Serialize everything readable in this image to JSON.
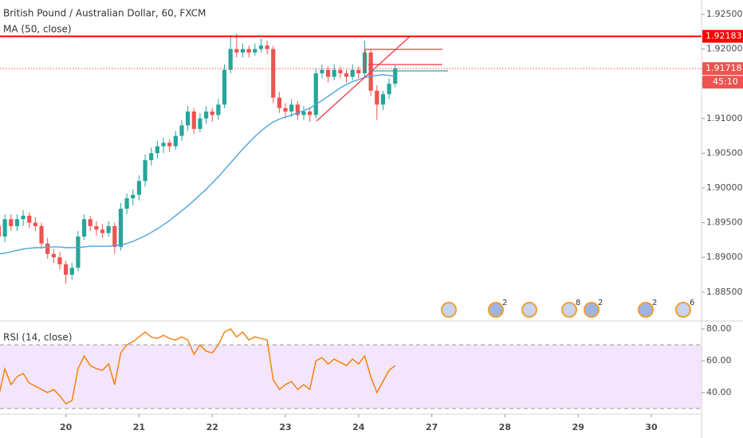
{
  "chart_data": [
    {
      "type": "candlestick",
      "title": "British Pound / Australian Dollar, 60, FXCM",
      "up_color": "#26a69a",
      "down_color": "#ef5350",
      "categories": [
        null,
        null,
        null,
        null,
        null,
        null,
        null,
        null,
        null,
        null,
        null,
        null,
        "20",
        null,
        null,
        null,
        null,
        null,
        null,
        null,
        null,
        null,
        null,
        null,
        "21",
        null,
        null,
        null,
        null,
        null,
        null,
        null,
        null,
        null,
        null,
        null,
        "22",
        null,
        null,
        null,
        null,
        null,
        null,
        null,
        null,
        null,
        null,
        null,
        "23",
        null,
        null,
        null,
        null,
        null,
        null,
        null,
        null,
        null,
        null,
        null,
        "24",
        null,
        null,
        null,
        null,
        null,
        null,
        null,
        null,
        null,
        null,
        null,
        "27",
        null,
        null,
        null,
        null,
        null,
        null,
        null,
        null,
        null,
        null,
        null,
        "28",
        null,
        null,
        null,
        null,
        null,
        null,
        null,
        null,
        null,
        null,
        null,
        "29",
        null,
        null,
        null,
        null,
        null,
        null,
        null,
        null,
        null,
        null,
        null,
        "30",
        null,
        null,
        null,
        null,
        null,
        null,
        null
      ],
      "ohlc": [
        null,
        [
          1.8945,
          1.8975,
          1.8915,
          1.893
        ],
        [
          1.893,
          1.8962,
          1.8922,
          1.8955
        ],
        [
          1.8955,
          1.8962,
          1.8938,
          1.8945
        ],
        [
          1.8945,
          1.8962,
          1.8938,
          1.8955
        ],
        [
          1.8955,
          1.8968,
          1.8945,
          1.896
        ],
        [
          1.896,
          1.8965,
          1.8942,
          1.895
        ],
        [
          1.895,
          1.8958,
          1.8938,
          1.8945
        ],
        [
          1.8945,
          1.895,
          1.8912,
          1.892
        ],
        [
          1.892,
          1.8928,
          1.8898,
          1.8905
        ],
        [
          1.8905,
          1.8912,
          1.8892,
          1.89
        ],
        [
          1.89,
          1.8908,
          1.8882,
          1.889
        ],
        [
          1.889,
          1.8895,
          1.8862,
          1.8875
        ],
        [
          1.8875,
          1.8892,
          1.8868,
          1.8885
        ],
        [
          1.8885,
          1.8938,
          1.888,
          1.893
        ],
        [
          1.893,
          1.8962,
          1.8925,
          1.8955
        ],
        [
          1.8955,
          1.896,
          1.8938,
          1.8945
        ],
        [
          1.8945,
          1.8952,
          1.8932,
          1.894
        ],
        [
          1.894,
          1.8948,
          1.8928,
          1.8935
        ],
        [
          1.8935,
          1.8952,
          1.893,
          1.8945
        ],
        [
          1.8945,
          1.895,
          1.8905,
          1.8915
        ],
        [
          1.8915,
          1.8978,
          1.891,
          1.897
        ],
        [
          1.897,
          1.8992,
          1.8962,
          1.8985
        ],
        [
          1.8985,
          1.8998,
          1.8975,
          1.899
        ],
        [
          1.899,
          1.9018,
          1.8982,
          1.901
        ],
        [
          1.901,
          1.9048,
          1.9002,
          1.904
        ],
        [
          1.904,
          1.9058,
          1.9032,
          1.905
        ],
        [
          1.905,
          1.9068,
          1.9042,
          1.906
        ],
        [
          1.906,
          1.9072,
          1.905,
          1.9065
        ],
        [
          1.9065,
          1.907,
          1.9052,
          1.906
        ],
        [
          1.906,
          1.9082,
          1.9055,
          1.9075
        ],
        [
          1.9075,
          1.9098,
          1.9068,
          1.909
        ],
        [
          1.909,
          1.9118,
          1.9082,
          1.911
        ],
        [
          1.911,
          1.9115,
          1.9078,
          1.9085
        ],
        [
          1.9085,
          1.9108,
          1.908,
          1.91
        ],
        [
          1.91,
          1.9118,
          1.9092,
          1.911
        ],
        [
          1.911,
          1.9115,
          1.9095,
          1.9105
        ],
        [
          1.9105,
          1.9128,
          1.9098,
          1.912
        ],
        [
          1.912,
          1.9178,
          1.9115,
          1.917
        ],
        [
          1.917,
          1.922,
          1.9165,
          1.92
        ],
        [
          1.92,
          1.9222,
          1.9188,
          1.9195
        ],
        [
          1.9195,
          1.9208,
          1.9188,
          1.92
        ],
        [
          1.92,
          1.9205,
          1.9188,
          1.9195
        ],
        [
          1.9195,
          1.9208,
          1.919,
          1.92
        ],
        [
          1.92,
          1.9215,
          1.9195,
          1.9205
        ],
        [
          1.9205,
          1.9212,
          1.9192,
          1.92
        ],
        [
          1.92,
          1.9205,
          1.9122,
          1.913
        ],
        [
          1.913,
          1.9138,
          1.9108,
          1.9115
        ],
        [
          1.9115,
          1.9122,
          1.91,
          1.911
        ],
        [
          1.911,
          1.9128,
          1.9102,
          1.912
        ],
        [
          1.912,
          1.9125,
          1.9098,
          1.9105
        ],
        [
          1.9105,
          1.9118,
          1.9098,
          1.911
        ],
        [
          1.911,
          1.9115,
          1.9095,
          1.9105
        ],
        [
          1.9105,
          1.9172,
          1.91,
          1.9165
        ],
        [
          1.9165,
          1.9178,
          1.9158,
          1.917
        ],
        [
          1.917,
          1.9175,
          1.9152,
          1.916
        ],
        [
          1.916,
          1.9178,
          1.9155,
          1.917
        ],
        [
          1.917,
          1.9175,
          1.9158,
          1.9165
        ],
        [
          1.9165,
          1.917,
          1.9152,
          1.916
        ],
        [
          1.916,
          1.9178,
          1.9155,
          1.917
        ],
        [
          1.917,
          1.9175,
          1.9158,
          1.9165
        ],
        [
          1.9165,
          1.9212,
          1.916,
          1.9195
        ],
        [
          1.9195,
          1.92,
          1.9132,
          1.914
        ],
        [
          1.914,
          1.9148,
          1.9098,
          1.912
        ],
        [
          1.912,
          1.914,
          1.9112,
          1.9135
        ],
        [
          1.9135,
          1.9158,
          1.9128,
          1.915
        ],
        [
          1.915,
          1.9178,
          1.9145,
          1.9172
        ],
        null,
        null,
        null,
        null,
        null,
        null,
        null,
        null,
        null,
        null,
        null,
        null,
        null,
        null,
        null,
        null,
        null,
        null,
        null,
        null,
        null,
        null,
        null,
        null,
        null,
        null,
        null,
        null,
        null,
        null,
        null,
        null,
        null,
        null,
        null,
        null,
        null,
        null,
        null,
        null,
        null,
        null,
        null,
        null,
        null,
        null,
        null,
        null,
        null
      ],
      "series": [
        {
          "name": "MA (50, close)",
          "color": "#4ea3e0",
          "values": [
            null,
            1.8905,
            1.8906,
            1.8908,
            1.891,
            1.8912,
            1.8913,
            1.8914,
            1.8914,
            1.8915,
            1.8915,
            1.8915,
            1.8914,
            1.8914,
            1.8914,
            1.8915,
            1.8916,
            1.8916,
            1.8916,
            1.8916,
            1.8917,
            1.8918,
            1.892,
            1.8923,
            1.8927,
            1.8931,
            1.8936,
            1.8941,
            1.8947,
            1.8953,
            1.896,
            1.8967,
            1.8974,
            1.8982,
            1.899,
            1.8998,
            1.9007,
            1.9016,
            1.9026,
            1.9036,
            1.9046,
            1.9056,
            1.9065,
            1.9074,
            1.9082,
            1.9089,
            1.9095,
            1.9099,
            1.9102,
            1.9105,
            1.9108,
            1.9111,
            1.9115,
            1.912,
            1.9126,
            1.9132,
            1.9138,
            1.9144,
            1.9149,
            1.9153,
            1.9156,
            1.9159,
            1.9161,
            1.9162,
            1.9163,
            1.9162,
            1.916,
            null,
            null,
            null,
            null,
            null,
            null,
            null,
            null,
            null,
            null,
            null,
            null,
            null,
            null,
            null,
            null,
            null,
            null,
            null,
            null,
            null,
            null,
            null,
            null,
            null,
            null,
            null,
            null,
            null,
            null,
            null,
            null,
            null,
            null,
            null,
            null,
            null,
            null,
            null,
            null,
            null,
            null,
            null,
            null,
            null,
            null,
            null,
            null,
            null
          ]
        }
      ],
      "ylim": [
        1.88096,
        1.92706
      ],
      "yticks": [
        {
          "value": 1.925,
          "label": "1.92500"
        },
        {
          "value": 1.92,
          "label": "1.92000"
        },
        {
          "value": 1.915,
          "label": "1.91500"
        },
        {
          "value": 1.91,
          "label": "1.91000"
        },
        {
          "value": 1.905,
          "label": "1.90500"
        },
        {
          "value": 1.9,
          "label": "1.90000"
        },
        {
          "value": 1.895,
          "label": "1.89500"
        },
        {
          "value": 1.89,
          "label": "1.89000"
        },
        {
          "value": 1.885,
          "label": "1.88500"
        }
      ],
      "price_lines": [
        {
          "value": 1.92183,
          "label": "1.92183",
          "color": "#ff0000",
          "style": "solid"
        },
        {
          "value": 1.91718,
          "label": "1.91718",
          "color": "#ef5350",
          "style": "dotted"
        }
      ],
      "countdown": "45:10",
      "event_counts": [
        "2",
        "8",
        "2",
        "2",
        "6"
      ]
    },
    {
      "type": "line",
      "title": "RSI (14, close)",
      "color": "#f57c00",
      "values": [
        null,
        38,
        55,
        45,
        50,
        52,
        46,
        44,
        42,
        40,
        42,
        38,
        33,
        35,
        55,
        63,
        57,
        55,
        54,
        58,
        45,
        65,
        70,
        72,
        75,
        78,
        75,
        74,
        76,
        74,
        73,
        75,
        73,
        64,
        70,
        66,
        65,
        70,
        78,
        80,
        75,
        78,
        73,
        75,
        74,
        73,
        48,
        42,
        45,
        47,
        42,
        45,
        42,
        60,
        62,
        58,
        61,
        59,
        57,
        61,
        58,
        63,
        50,
        40,
        47,
        54,
        57,
        null,
        null,
        null,
        null,
        null,
        null,
        null,
        null,
        null,
        null,
        null,
        null,
        null,
        null,
        null,
        null,
        null,
        null,
        null,
        null,
        null,
        null,
        null,
        null,
        null,
        null,
        null,
        null,
        null,
        null,
        null,
        null,
        null,
        null,
        null,
        null,
        null,
        null,
        null,
        null,
        null,
        null,
        null,
        null,
        null,
        null,
        null,
        null,
        null
      ],
      "ylim": [
        26.5,
        84
      ],
      "yticks": [
        {
          "value": 80,
          "label": "80.00"
        },
        {
          "value": 60,
          "label": "60.00"
        },
        {
          "value": 40,
          "label": "40.00"
        }
      ],
      "band": [
        30,
        70
      ],
      "band_color": "#f3e5fc"
    }
  ]
}
